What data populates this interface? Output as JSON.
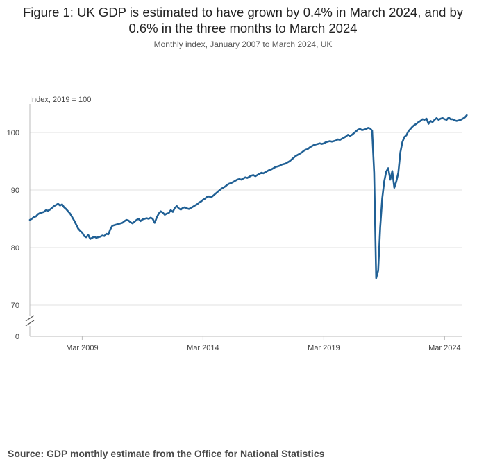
{
  "title": "Figure 1: UK GDP is estimated to have grown by 0.4% in March 2024, and by 0.6% in the three months to March 2024",
  "subtitle": "Monthly index, January 2007 to March 2024, UK",
  "source": "Source: GDP monthly estimate from the Office for National Statistics",
  "chart_data": {
    "type": "line",
    "ylabel": "Index, 2019 = 100",
    "xlabel": "",
    "y_ticks": [
      100,
      90,
      80,
      70,
      0
    ],
    "x_ticks": [
      "Mar 2009",
      "Mar 2014",
      "Mar 2019",
      "Mar 2024"
    ],
    "axis_break": true,
    "grid": true,
    "colors": {
      "line": "#206095",
      "grid": "#e0e0e0",
      "axis": "#bbbbbb"
    },
    "x_start": "2007-01",
    "x_end": "2024-03",
    "series": [
      {
        "values": [
          84.8,
          85.0,
          85.3,
          85.4,
          85.8,
          86.0,
          86.1,
          86.2,
          86.5,
          86.4,
          86.6,
          86.9,
          87.2,
          87.4,
          87.6,
          87.3,
          87.5,
          87.0,
          86.7,
          86.3,
          85.9,
          85.3,
          84.7,
          84.0,
          83.3,
          82.9,
          82.6,
          82.0,
          81.8,
          82.2,
          81.5,
          81.7,
          81.9,
          81.7,
          81.8,
          81.9,
          82.1,
          82.0,
          82.4,
          82.3,
          83.2,
          83.8,
          83.9,
          84.0,
          84.1,
          84.2,
          84.3,
          84.6,
          84.8,
          84.7,
          84.4,
          84.2,
          84.5,
          84.8,
          85.0,
          84.6,
          84.9,
          85.0,
          85.1,
          85.0,
          85.2,
          85.0,
          84.3,
          85.2,
          85.9,
          86.3,
          86.1,
          85.7,
          85.9,
          86.0,
          86.5,
          86.2,
          86.9,
          87.2,
          86.8,
          86.6,
          86.9,
          87.0,
          86.8,
          86.7,
          86.9,
          87.1,
          87.3,
          87.5,
          87.8,
          88.0,
          88.3,
          88.5,
          88.8,
          88.9,
          88.7,
          89.0,
          89.3,
          89.6,
          89.9,
          90.2,
          90.4,
          90.6,
          90.9,
          91.1,
          91.2,
          91.4,
          91.6,
          91.8,
          91.9,
          91.8,
          92.0,
          92.2,
          92.1,
          92.3,
          92.5,
          92.6,
          92.4,
          92.6,
          92.8,
          93.0,
          92.9,
          93.1,
          93.3,
          93.5,
          93.6,
          93.8,
          94.0,
          94.1,
          94.2,
          94.4,
          94.5,
          94.6,
          94.8,
          95.0,
          95.3,
          95.6,
          95.9,
          96.1,
          96.3,
          96.5,
          96.8,
          97.0,
          97.1,
          97.4,
          97.6,
          97.8,
          97.9,
          98.0,
          98.1,
          98.0,
          98.1,
          98.3,
          98.4,
          98.5,
          98.4,
          98.5,
          98.6,
          98.8,
          98.7,
          98.9,
          99.1,
          99.3,
          99.6,
          99.4,
          99.6,
          99.9,
          100.2,
          100.5,
          100.6,
          100.4,
          100.5,
          100.6,
          100.8,
          100.7,
          100.3,
          93.0,
          74.7,
          76.0,
          83.5,
          88.5,
          91.5,
          93.2,
          93.8,
          91.8,
          93.3,
          90.4,
          91.5,
          93.0,
          96.5,
          98.3,
          99.2,
          99.5,
          100.2,
          100.6,
          101.0,
          101.3,
          101.5,
          101.8,
          102.0,
          102.3,
          102.2,
          102.4,
          101.5,
          102.0,
          101.8,
          102.2,
          102.5,
          102.2,
          102.4,
          102.5,
          102.3,
          102.2,
          102.6,
          102.3,
          102.3,
          102.1,
          102.0,
          102.1,
          102.2,
          102.4,
          102.6,
          103.0
        ]
      }
    ]
  }
}
